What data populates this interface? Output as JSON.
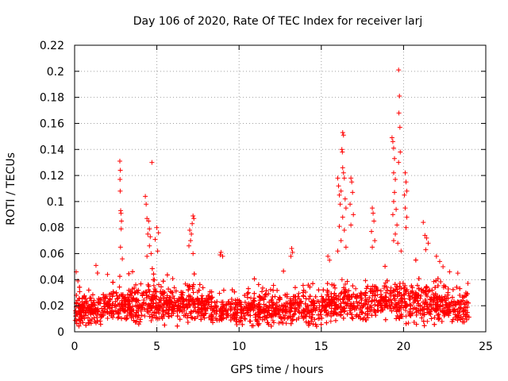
{
  "chart_data": {
    "type": "scatter",
    "title": "Day 106 of 2020, Rate Of TEC Index for receiver larj",
    "xlabel": "GPS time / hours",
    "ylabel": "ROTI / TECUs",
    "xlim": [
      0,
      25
    ],
    "ylim": [
      0,
      0.22
    ],
    "xticks": [
      0,
      5,
      10,
      15,
      20,
      25
    ],
    "xtick_labels": [
      "0",
      "5",
      "10",
      "15",
      "20",
      "25"
    ],
    "yticks": [
      0,
      0.02,
      0.04,
      0.06,
      0.08,
      0.1,
      0.12,
      0.14,
      0.16,
      0.18,
      0.2,
      0.22
    ],
    "ytick_labels": [
      "0",
      "0.02",
      "0.04",
      "0.06",
      "0.08",
      "0.1",
      "0.12",
      "0.14",
      "0.16",
      "0.18",
      "0.2",
      "0.22"
    ],
    "grid": true,
    "marker": "+",
    "color": "#ff0000",
    "series": [
      {
        "name": "ROTI",
        "dense_band": {
          "x_range": [
            0,
            24
          ],
          "baseline_by_hour": [
            [
              0,
              0.015
            ],
            [
              1,
              0.016
            ],
            [
              2,
              0.018
            ],
            [
              3,
              0.02
            ],
            [
              4,
              0.022
            ],
            [
              5,
              0.022
            ],
            [
              6,
              0.02
            ],
            [
              7,
              0.021
            ],
            [
              8,
              0.019
            ],
            [
              9,
              0.018
            ],
            [
              10,
              0.017
            ],
            [
              11,
              0.017
            ],
            [
              12,
              0.017
            ],
            [
              13,
              0.018
            ],
            [
              14,
              0.018
            ],
            [
              15,
              0.019
            ],
            [
              16,
              0.021
            ],
            [
              17,
              0.021
            ],
            [
              18,
              0.022
            ],
            [
              19,
              0.023
            ],
            [
              20,
              0.022
            ],
            [
              21,
              0.021
            ],
            [
              22,
              0.02
            ],
            [
              23,
              0.018
            ],
            [
              24,
              0.017
            ]
          ],
          "floor": 0.004
        },
        "points": [
          [
            0.1,
            0.046
          ],
          [
            0.2,
            0.039
          ],
          [
            1.3,
            0.051
          ],
          [
            2.0,
            0.044
          ],
          [
            2.75,
            0.131
          ],
          [
            2.78,
            0.124
          ],
          [
            2.76,
            0.117
          ],
          [
            2.77,
            0.108
          ],
          [
            2.8,
            0.093
          ],
          [
            2.82,
            0.091
          ],
          [
            2.85,
            0.085
          ],
          [
            2.83,
            0.079
          ],
          [
            2.79,
            0.065
          ],
          [
            2.9,
            0.056
          ],
          [
            4.3,
            0.104
          ],
          [
            4.35,
            0.098
          ],
          [
            4.4,
            0.087
          ],
          [
            4.5,
            0.085
          ],
          [
            4.55,
            0.079
          ],
          [
            4.45,
            0.075
          ],
          [
            4.6,
            0.073
          ],
          [
            4.7,
            0.13
          ],
          [
            4.55,
            0.066
          ],
          [
            4.4,
            0.058
          ],
          [
            4.65,
            0.06
          ],
          [
            5.0,
            0.08
          ],
          [
            5.1,
            0.076
          ],
          [
            4.9,
            0.071
          ],
          [
            5.05,
            0.062
          ],
          [
            7.0,
            0.078
          ],
          [
            7.1,
            0.075
          ],
          [
            7.2,
            0.089
          ],
          [
            7.25,
            0.087
          ],
          [
            7.15,
            0.083
          ],
          [
            7.05,
            0.07
          ],
          [
            6.95,
            0.066
          ],
          [
            7.2,
            0.06
          ],
          [
            8.9,
            0.061
          ],
          [
            8.85,
            0.059
          ],
          [
            9.0,
            0.058
          ],
          [
            13.2,
            0.064
          ],
          [
            13.25,
            0.061
          ],
          [
            13.15,
            0.058
          ],
          [
            15.4,
            0.058
          ],
          [
            15.5,
            0.055
          ],
          [
            16.0,
            0.118
          ],
          [
            16.05,
            0.112
          ],
          [
            16.1,
            0.105
          ],
          [
            16.15,
            0.098
          ],
          [
            16.3,
            0.153
          ],
          [
            16.35,
            0.151
          ],
          [
            16.25,
            0.14
          ],
          [
            16.28,
            0.138
          ],
          [
            16.3,
            0.126
          ],
          [
            16.35,
            0.122
          ],
          [
            16.4,
            0.118
          ],
          [
            16.2,
            0.108
          ],
          [
            16.45,
            0.102
          ],
          [
            16.5,
            0.095
          ],
          [
            16.3,
            0.088
          ],
          [
            16.1,
            0.081
          ],
          [
            16.4,
            0.078
          ],
          [
            16.2,
            0.07
          ],
          [
            16.5,
            0.065
          ],
          [
            16.0,
            0.062
          ],
          [
            16.8,
            0.118
          ],
          [
            16.85,
            0.115
          ],
          [
            16.9,
            0.107
          ],
          [
            16.75,
            0.098
          ],
          [
            16.95,
            0.09
          ],
          [
            16.8,
            0.082
          ],
          [
            18.1,
            0.095
          ],
          [
            18.15,
            0.091
          ],
          [
            18.2,
            0.085
          ],
          [
            18.05,
            0.077
          ],
          [
            18.25,
            0.07
          ],
          [
            18.1,
            0.065
          ],
          [
            19.3,
            0.149
          ],
          [
            19.35,
            0.146
          ],
          [
            19.4,
            0.141
          ],
          [
            19.45,
            0.133
          ],
          [
            19.4,
            0.122
          ],
          [
            19.5,
            0.117
          ],
          [
            19.45,
            0.107
          ],
          [
            19.4,
            0.1
          ],
          [
            19.55,
            0.094
          ],
          [
            19.35,
            0.09
          ],
          [
            19.6,
            0.082
          ],
          [
            19.5,
            0.075
          ],
          [
            19.4,
            0.07
          ],
          [
            19.7,
            0.201
          ],
          [
            19.75,
            0.181
          ],
          [
            19.72,
            0.168
          ],
          [
            19.78,
            0.157
          ],
          [
            19.8,
            0.138
          ],
          [
            19.7,
            0.13
          ],
          [
            19.65,
            0.068
          ],
          [
            19.85,
            0.062
          ],
          [
            20.1,
            0.122
          ],
          [
            20.15,
            0.115
          ],
          [
            20.2,
            0.108
          ],
          [
            20.05,
            0.105
          ],
          [
            20.1,
            0.095
          ],
          [
            20.2,
            0.088
          ],
          [
            20.15,
            0.08
          ],
          [
            21.2,
            0.084
          ],
          [
            21.3,
            0.074
          ],
          [
            21.4,
            0.072
          ],
          [
            21.5,
            0.068
          ],
          [
            21.35,
            0.063
          ],
          [
            22.0,
            0.058
          ],
          [
            22.2,
            0.054
          ],
          [
            22.4,
            0.05
          ],
          [
            22.8,
            0.046
          ],
          [
            23.3,
            0.045
          ]
        ]
      }
    ]
  }
}
